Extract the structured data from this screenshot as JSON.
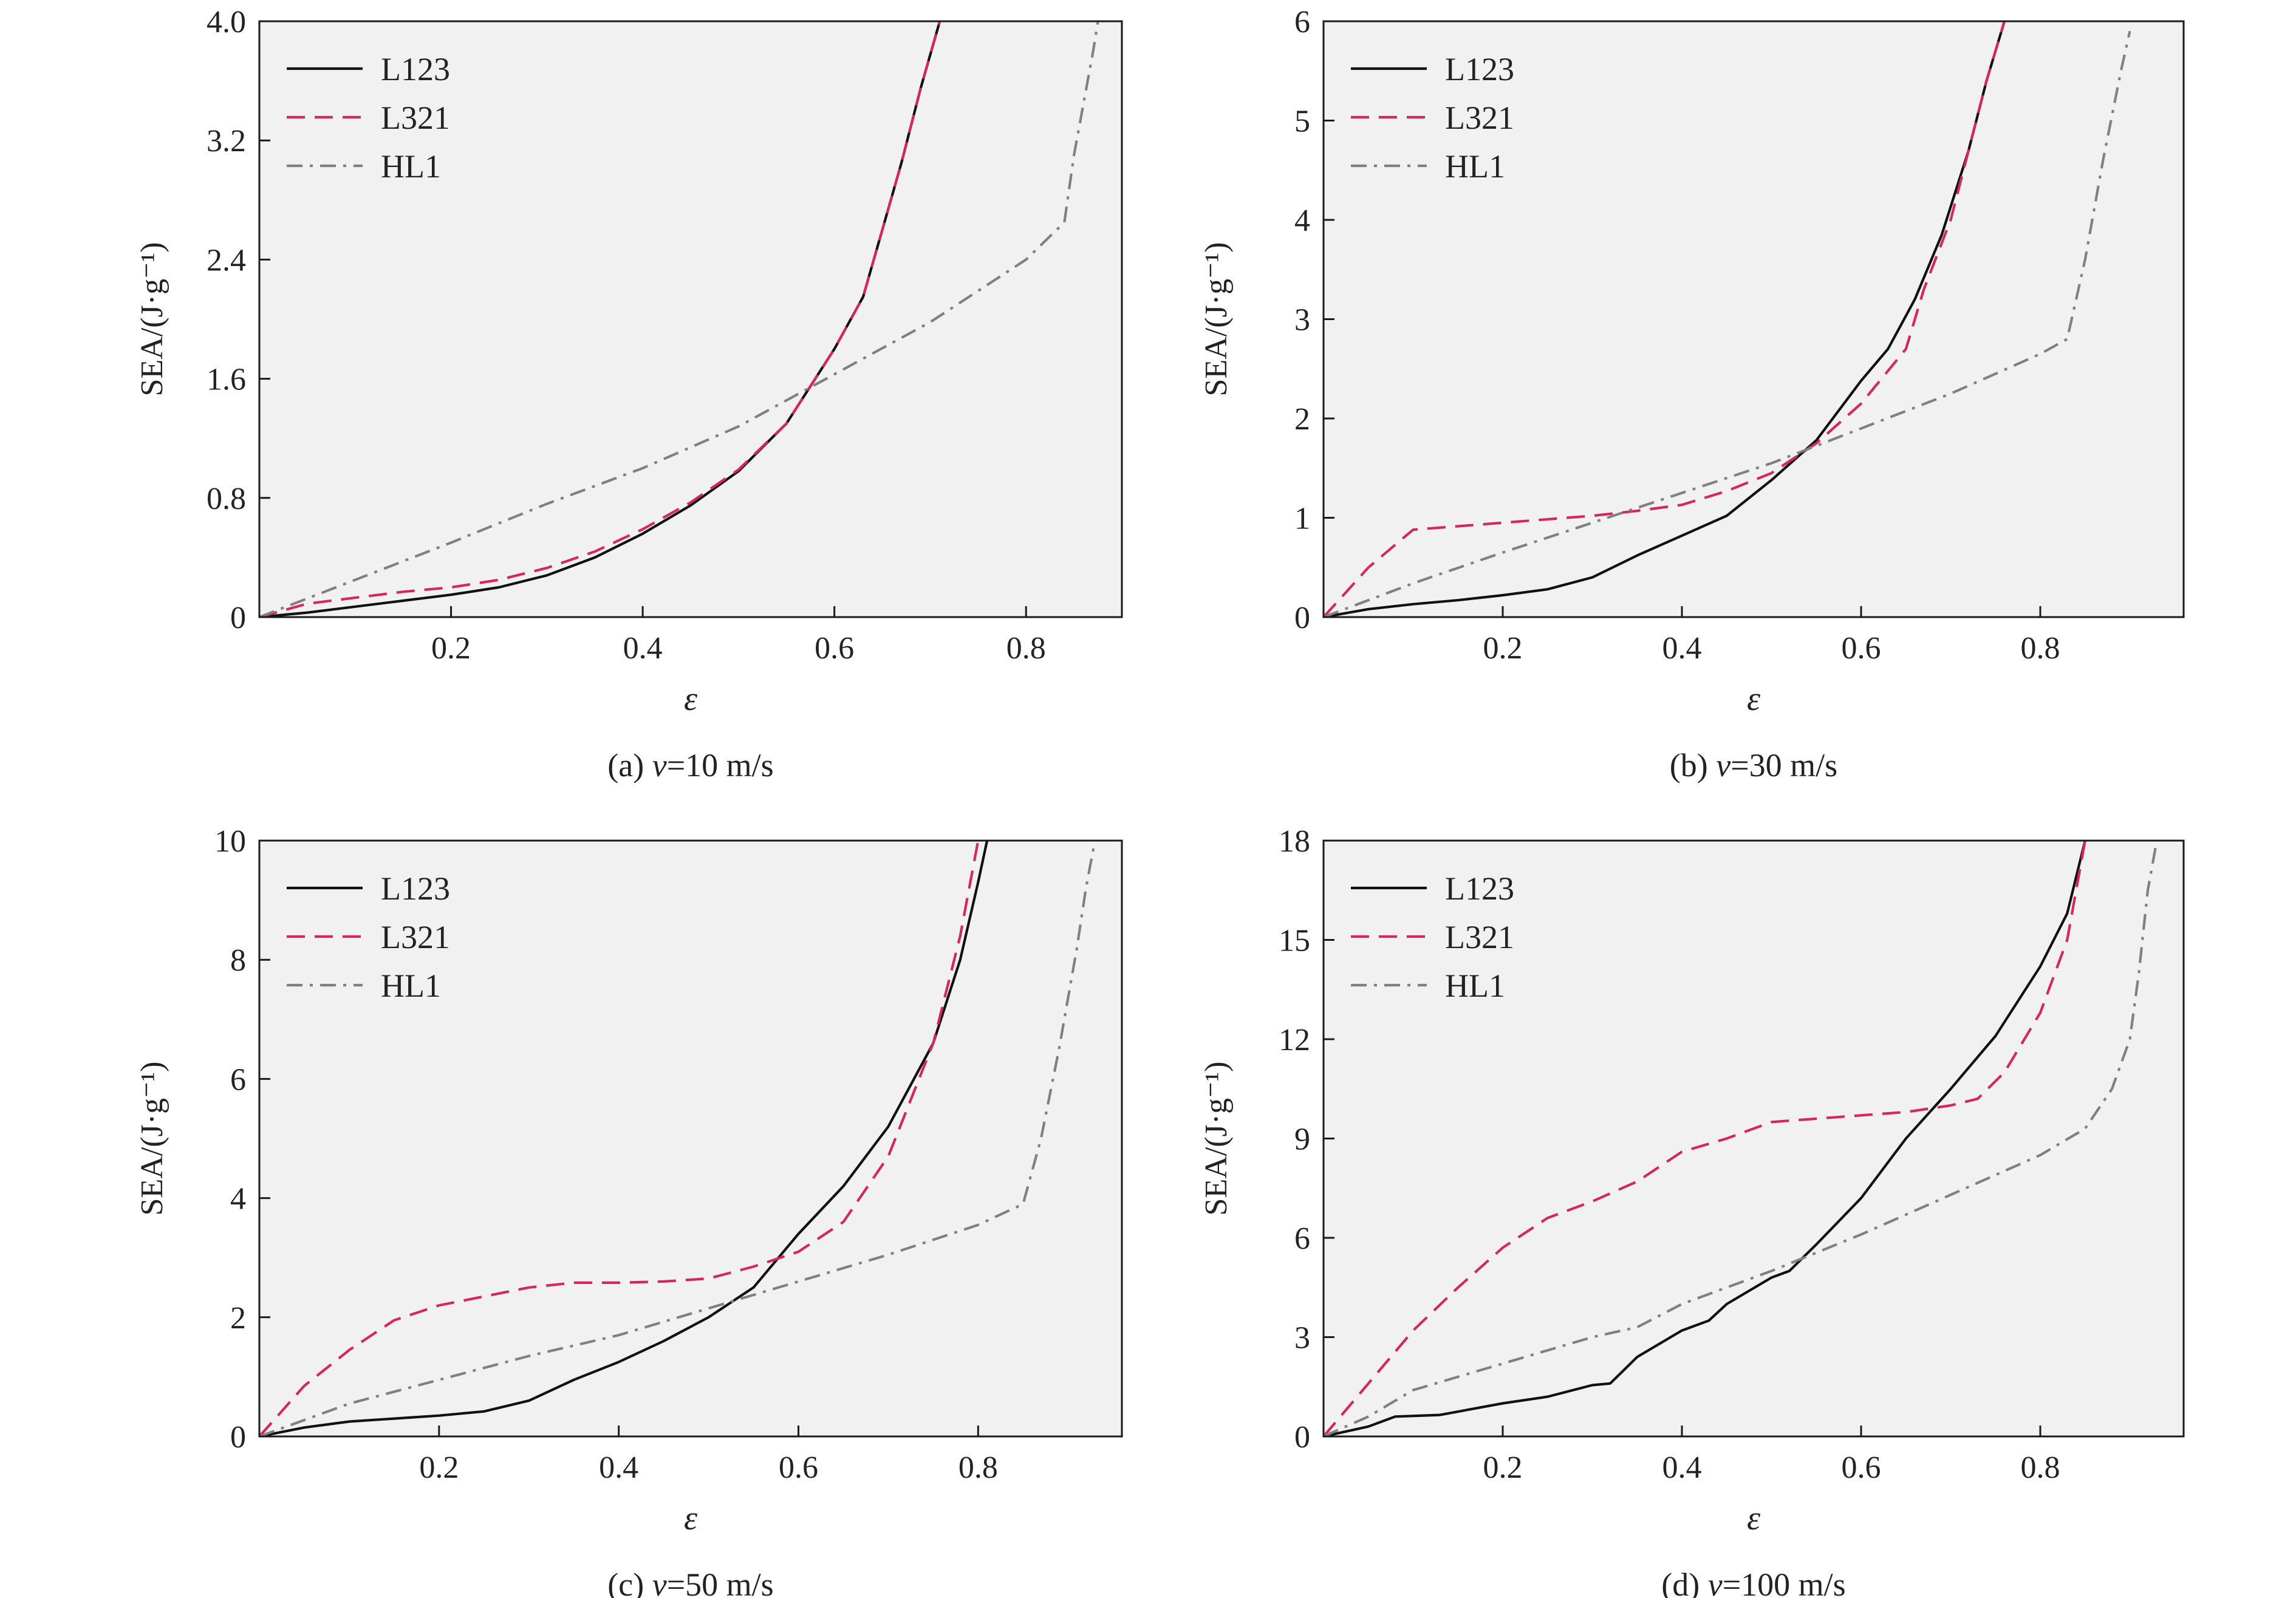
{
  "colors": {
    "L123": "#111111",
    "L321": "#d6275a",
    "HL1": "#808080"
  },
  "chart_data": [
    {
      "type": "line",
      "caption": "(a) v=10 m/s",
      "caption_prefix": "(a) ",
      "caption_var": "v",
      "caption_rest": "=10 m/s",
      "xlabel": "ε",
      "ylabel": "SEA/(J·g⁻¹)",
      "xlim": [
        0,
        0.9
      ],
      "ylim": [
        0,
        4.0
      ],
      "xticks": [
        0.2,
        0.4,
        0.6,
        0.8
      ],
      "xtick_labels": [
        "0.2",
        "0.4",
        "0.6",
        "0.8"
      ],
      "yticks": [
        0,
        0.8,
        1.6,
        2.4,
        3.2,
        4.0
      ],
      "ytick_labels": [
        "0",
        "0.8",
        "1.6",
        "2.4",
        "3.2",
        "4.0"
      ],
      "legend": "top-left",
      "series": [
        {
          "name": "L123",
          "style": "solid",
          "x": [
            0,
            0.05,
            0.1,
            0.15,
            0.2,
            0.25,
            0.3,
            0.35,
            0.4,
            0.45,
            0.5,
            0.55,
            0.6,
            0.63,
            0.65,
            0.67,
            0.69,
            0.71
          ],
          "y": [
            0,
            0.03,
            0.07,
            0.11,
            0.15,
            0.2,
            0.28,
            0.4,
            0.56,
            0.75,
            0.98,
            1.3,
            1.8,
            2.15,
            2.6,
            3.05,
            3.55,
            4.0
          ]
        },
        {
          "name": "L321",
          "style": "dashed",
          "x": [
            0,
            0.05,
            0.1,
            0.15,
            0.2,
            0.25,
            0.3,
            0.35,
            0.4,
            0.45,
            0.5,
            0.55,
            0.6,
            0.63,
            0.65,
            0.67,
            0.69,
            0.71
          ],
          "y": [
            0,
            0.09,
            0.13,
            0.17,
            0.2,
            0.25,
            0.33,
            0.44,
            0.59,
            0.77,
            0.99,
            1.3,
            1.8,
            2.15,
            2.6,
            3.05,
            3.55,
            4.0
          ]
        },
        {
          "name": "HL1",
          "style": "dashdot",
          "x": [
            0,
            0.1,
            0.2,
            0.3,
            0.4,
            0.5,
            0.6,
            0.7,
            0.8,
            0.84,
            0.85,
            0.87,
            0.875
          ],
          "y": [
            0,
            0.25,
            0.5,
            0.76,
            1.0,
            1.28,
            1.63,
            1.98,
            2.4,
            2.65,
            3.1,
            3.8,
            4.0
          ]
        }
      ]
    },
    {
      "type": "line",
      "caption": "(b) v=30 m/s",
      "caption_prefix": "(b) ",
      "caption_var": "v",
      "caption_rest": "=30 m/s",
      "xlabel": "ε",
      "ylabel": "SEA/(J·g⁻¹)",
      "xlim": [
        0,
        0.96
      ],
      "ylim": [
        0,
        6
      ],
      "xticks": [
        0.2,
        0.4,
        0.6,
        0.8
      ],
      "xtick_labels": [
        "0.2",
        "0.4",
        "0.6",
        "0.8"
      ],
      "yticks": [
        0,
        1,
        2,
        3,
        4,
        5,
        6
      ],
      "ytick_labels": [
        "0",
        "1",
        "2",
        "3",
        "4",
        "5",
        "6"
      ],
      "legend": "top-left",
      "series": [
        {
          "name": "L123",
          "style": "solid",
          "x": [
            0,
            0.05,
            0.1,
            0.15,
            0.2,
            0.25,
            0.3,
            0.35,
            0.4,
            0.45,
            0.5,
            0.55,
            0.6,
            0.63,
            0.66,
            0.69,
            0.72,
            0.74,
            0.76
          ],
          "y": [
            0,
            0.08,
            0.13,
            0.17,
            0.22,
            0.28,
            0.4,
            0.62,
            0.82,
            1.02,
            1.38,
            1.78,
            2.38,
            2.7,
            3.2,
            3.85,
            4.7,
            5.4,
            6.0
          ]
        },
        {
          "name": "L321",
          "style": "dashed",
          "x": [
            0,
            0.05,
            0.1,
            0.2,
            0.3,
            0.35,
            0.4,
            0.45,
            0.5,
            0.55,
            0.6,
            0.65,
            0.67,
            0.7,
            0.72,
            0.74,
            0.76
          ],
          "y": [
            0,
            0.5,
            0.88,
            0.95,
            1.02,
            1.07,
            1.13,
            1.27,
            1.45,
            1.75,
            2.15,
            2.7,
            3.3,
            4.0,
            4.7,
            5.4,
            6.0
          ]
        },
        {
          "name": "HL1",
          "style": "dashdot",
          "x": [
            0,
            0.1,
            0.2,
            0.3,
            0.4,
            0.5,
            0.6,
            0.7,
            0.8,
            0.83,
            0.85,
            0.87,
            0.89,
            0.9
          ],
          "y": [
            0,
            0.34,
            0.65,
            0.95,
            1.25,
            1.55,
            1.9,
            2.25,
            2.65,
            2.8,
            3.6,
            4.6,
            5.5,
            5.9
          ]
        }
      ]
    },
    {
      "type": "line",
      "caption": "(c) v=50 m/s",
      "caption_prefix": "(c) ",
      "caption_var": "v",
      "caption_rest": "=50 m/s",
      "xlabel": "ε",
      "ylabel": "SEA/(J·g⁻¹)",
      "xlim": [
        0,
        0.96
      ],
      "ylim": [
        0,
        10
      ],
      "xticks": [
        0.2,
        0.4,
        0.6,
        0.8
      ],
      "xtick_labels": [
        "0.2",
        "0.4",
        "0.6",
        "0.8"
      ],
      "yticks": [
        0,
        2,
        4,
        6,
        8,
        10
      ],
      "ytick_labels": [
        "0",
        "2",
        "4",
        "6",
        "8",
        "10"
      ],
      "legend": "top-left",
      "series": [
        {
          "name": "L123",
          "style": "solid",
          "x": [
            0,
            0.05,
            0.1,
            0.15,
            0.2,
            0.25,
            0.3,
            0.35,
            0.4,
            0.45,
            0.5,
            0.55,
            0.6,
            0.65,
            0.7,
            0.75,
            0.78,
            0.8,
            0.81
          ],
          "y": [
            0,
            0.15,
            0.25,
            0.3,
            0.35,
            0.42,
            0.6,
            0.95,
            1.25,
            1.6,
            2.0,
            2.5,
            3.4,
            4.2,
            5.2,
            6.6,
            8.0,
            9.3,
            10.0
          ]
        },
        {
          "name": "L321",
          "style": "dashed",
          "x": [
            0,
            0.05,
            0.1,
            0.15,
            0.2,
            0.25,
            0.3,
            0.35,
            0.4,
            0.45,
            0.5,
            0.55,
            0.6,
            0.65,
            0.7,
            0.75,
            0.78,
            0.8
          ],
          "y": [
            0,
            0.85,
            1.45,
            1.95,
            2.2,
            2.35,
            2.5,
            2.58,
            2.58,
            2.6,
            2.65,
            2.85,
            3.1,
            3.6,
            4.7,
            6.6,
            8.4,
            10.0
          ]
        },
        {
          "name": "HL1",
          "style": "dashdot",
          "x": [
            0,
            0.1,
            0.2,
            0.3,
            0.4,
            0.5,
            0.6,
            0.7,
            0.8,
            0.85,
            0.87,
            0.89,
            0.91,
            0.92,
            0.93
          ],
          "y": [
            0,
            0.55,
            0.95,
            1.35,
            1.7,
            2.15,
            2.6,
            3.05,
            3.55,
            3.9,
            5.0,
            6.5,
            8.2,
            9.2,
            10.0
          ]
        }
      ]
    },
    {
      "type": "line",
      "caption": "(d) v=100 m/s",
      "caption_prefix": "(d) ",
      "caption_var": "v",
      "caption_rest": "=100 m/s",
      "xlabel": "ε",
      "ylabel": "SEA/(J·g⁻¹)",
      "xlim": [
        0,
        0.96
      ],
      "ylim": [
        0,
        18
      ],
      "xticks": [
        0.2,
        0.4,
        0.6,
        0.8
      ],
      "xtick_labels": [
        "0.2",
        "0.4",
        "0.6",
        "0.8"
      ],
      "yticks": [
        0,
        3,
        6,
        9,
        12,
        15,
        18
      ],
      "ytick_labels": [
        "0",
        "3",
        "6",
        "9",
        "12",
        "15",
        "18"
      ],
      "legend": "top-left",
      "series": [
        {
          "name": "L123",
          "style": "solid",
          "x": [
            0,
            0.05,
            0.08,
            0.13,
            0.2,
            0.25,
            0.3,
            0.32,
            0.35,
            0.4,
            0.43,
            0.45,
            0.5,
            0.52,
            0.55,
            0.6,
            0.65,
            0.7,
            0.75,
            0.8,
            0.83,
            0.85
          ],
          "y": [
            0,
            0.3,
            0.6,
            0.65,
            1.0,
            1.2,
            1.55,
            1.6,
            2.4,
            3.2,
            3.5,
            4.0,
            4.8,
            5.0,
            5.8,
            7.2,
            9.0,
            10.5,
            12.1,
            14.2,
            15.8,
            18.0
          ]
        },
        {
          "name": "L321",
          "style": "dashed",
          "x": [
            0,
            0.05,
            0.1,
            0.15,
            0.2,
            0.25,
            0.3,
            0.35,
            0.4,
            0.45,
            0.5,
            0.55,
            0.6,
            0.65,
            0.7,
            0.73,
            0.76,
            0.8,
            0.83,
            0.85
          ],
          "y": [
            0,
            1.6,
            3.2,
            4.5,
            5.7,
            6.6,
            7.1,
            7.7,
            8.6,
            9.0,
            9.5,
            9.6,
            9.7,
            9.8,
            10.0,
            10.2,
            11.0,
            12.8,
            15.0,
            18.0
          ]
        },
        {
          "name": "HL1",
          "style": "dashdot",
          "x": [
            0,
            0.05,
            0.1,
            0.2,
            0.3,
            0.35,
            0.4,
            0.5,
            0.6,
            0.7,
            0.8,
            0.85,
            0.88,
            0.9,
            0.91,
            0.92,
            0.93
          ],
          "y": [
            0,
            0.6,
            1.4,
            2.2,
            3.0,
            3.3,
            4.0,
            5.0,
            6.1,
            7.3,
            8.5,
            9.3,
            10.5,
            12.0,
            14.0,
            16.5,
            18.0
          ]
        }
      ]
    }
  ]
}
